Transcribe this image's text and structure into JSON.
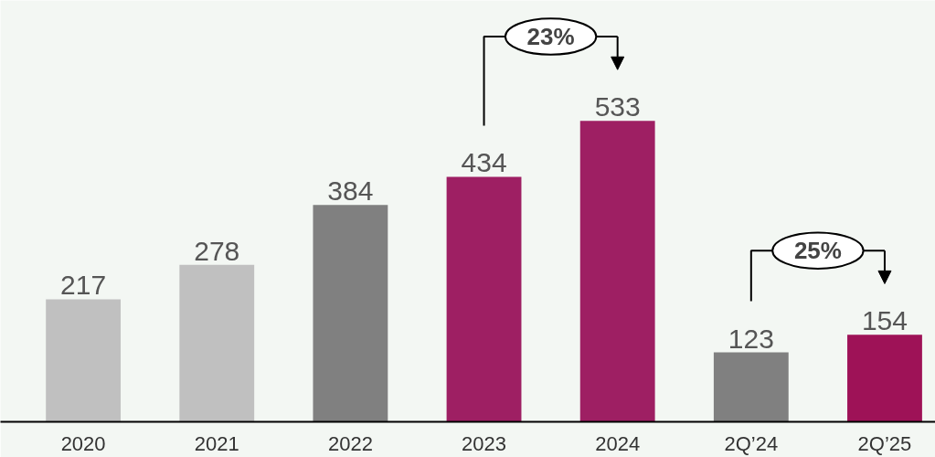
{
  "chart_data": {
    "type": "bar",
    "categories": [
      "2020",
      "2021",
      "2022",
      "2023",
      "2024",
      "2Q’24",
      "2Q’25"
    ],
    "values": [
      217,
      278,
      384,
      434,
      533,
      123,
      154
    ],
    "colors": [
      "#c0c0c0",
      "#c0c0c0",
      "#808080",
      "#9e1f63",
      "#9e1f63",
      "#808080",
      "#9e1257"
    ],
    "data_labels": true,
    "grid": false,
    "tick_labels": "x",
    "annotations": [
      "23%",
      "25%"
    ]
  }
}
